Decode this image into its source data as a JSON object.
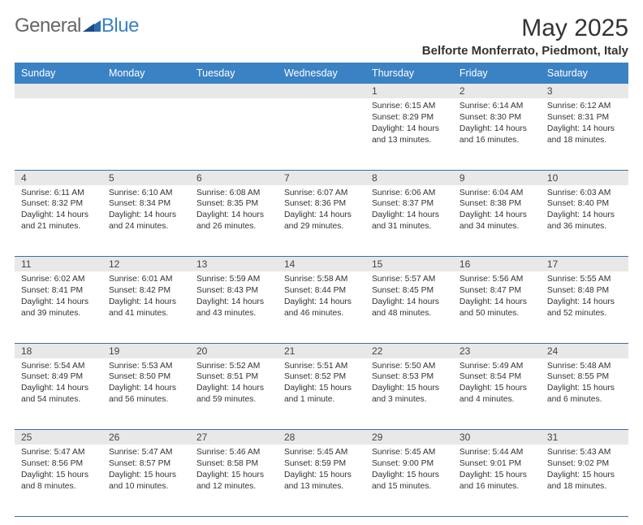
{
  "brand": {
    "part1": "General",
    "part2": "Blue"
  },
  "title": "May 2025",
  "location": "Belforte Monferrato, Piedmont, Italy",
  "colors": {
    "header_bg": "#3b82c4",
    "header_text": "#ffffff",
    "daynum_bg": "#e8e8e8",
    "cell_border": "#3b6fa3",
    "page_bg": "#ffffff",
    "text": "#333333",
    "logo_gray": "#666666",
    "logo_blue": "#3b82c4"
  },
  "typography": {
    "month_title_size": 30,
    "location_size": 15,
    "dayhead_size": 12.5,
    "cell_size": 10.3,
    "daynum_size": 12
  },
  "day_names": [
    "Sunday",
    "Monday",
    "Tuesday",
    "Wednesday",
    "Thursday",
    "Friday",
    "Saturday"
  ],
  "weeks": [
    [
      null,
      null,
      null,
      null,
      {
        "n": "1",
        "sr": "6:15 AM",
        "ss": "8:29 PM",
        "dl": "14 hours and 13 minutes."
      },
      {
        "n": "2",
        "sr": "6:14 AM",
        "ss": "8:30 PM",
        "dl": "14 hours and 16 minutes."
      },
      {
        "n": "3",
        "sr": "6:12 AM",
        "ss": "8:31 PM",
        "dl": "14 hours and 18 minutes."
      }
    ],
    [
      {
        "n": "4",
        "sr": "6:11 AM",
        "ss": "8:32 PM",
        "dl": "14 hours and 21 minutes."
      },
      {
        "n": "5",
        "sr": "6:10 AM",
        "ss": "8:34 PM",
        "dl": "14 hours and 24 minutes."
      },
      {
        "n": "6",
        "sr": "6:08 AM",
        "ss": "8:35 PM",
        "dl": "14 hours and 26 minutes."
      },
      {
        "n": "7",
        "sr": "6:07 AM",
        "ss": "8:36 PM",
        "dl": "14 hours and 29 minutes."
      },
      {
        "n": "8",
        "sr": "6:06 AM",
        "ss": "8:37 PM",
        "dl": "14 hours and 31 minutes."
      },
      {
        "n": "9",
        "sr": "6:04 AM",
        "ss": "8:38 PM",
        "dl": "14 hours and 34 minutes."
      },
      {
        "n": "10",
        "sr": "6:03 AM",
        "ss": "8:40 PM",
        "dl": "14 hours and 36 minutes."
      }
    ],
    [
      {
        "n": "11",
        "sr": "6:02 AM",
        "ss": "8:41 PM",
        "dl": "14 hours and 39 minutes."
      },
      {
        "n": "12",
        "sr": "6:01 AM",
        "ss": "8:42 PM",
        "dl": "14 hours and 41 minutes."
      },
      {
        "n": "13",
        "sr": "5:59 AM",
        "ss": "8:43 PM",
        "dl": "14 hours and 43 minutes."
      },
      {
        "n": "14",
        "sr": "5:58 AM",
        "ss": "8:44 PM",
        "dl": "14 hours and 46 minutes."
      },
      {
        "n": "15",
        "sr": "5:57 AM",
        "ss": "8:45 PM",
        "dl": "14 hours and 48 minutes."
      },
      {
        "n": "16",
        "sr": "5:56 AM",
        "ss": "8:47 PM",
        "dl": "14 hours and 50 minutes."
      },
      {
        "n": "17",
        "sr": "5:55 AM",
        "ss": "8:48 PM",
        "dl": "14 hours and 52 minutes."
      }
    ],
    [
      {
        "n": "18",
        "sr": "5:54 AM",
        "ss": "8:49 PM",
        "dl": "14 hours and 54 minutes."
      },
      {
        "n": "19",
        "sr": "5:53 AM",
        "ss": "8:50 PM",
        "dl": "14 hours and 56 minutes."
      },
      {
        "n": "20",
        "sr": "5:52 AM",
        "ss": "8:51 PM",
        "dl": "14 hours and 59 minutes."
      },
      {
        "n": "21",
        "sr": "5:51 AM",
        "ss": "8:52 PM",
        "dl": "15 hours and 1 minute."
      },
      {
        "n": "22",
        "sr": "5:50 AM",
        "ss": "8:53 PM",
        "dl": "15 hours and 3 minutes."
      },
      {
        "n": "23",
        "sr": "5:49 AM",
        "ss": "8:54 PM",
        "dl": "15 hours and 4 minutes."
      },
      {
        "n": "24",
        "sr": "5:48 AM",
        "ss": "8:55 PM",
        "dl": "15 hours and 6 minutes."
      }
    ],
    [
      {
        "n": "25",
        "sr": "5:47 AM",
        "ss": "8:56 PM",
        "dl": "15 hours and 8 minutes."
      },
      {
        "n": "26",
        "sr": "5:47 AM",
        "ss": "8:57 PM",
        "dl": "15 hours and 10 minutes."
      },
      {
        "n": "27",
        "sr": "5:46 AM",
        "ss": "8:58 PM",
        "dl": "15 hours and 12 minutes."
      },
      {
        "n": "28",
        "sr": "5:45 AM",
        "ss": "8:59 PM",
        "dl": "15 hours and 13 minutes."
      },
      {
        "n": "29",
        "sr": "5:45 AM",
        "ss": "9:00 PM",
        "dl": "15 hours and 15 minutes."
      },
      {
        "n": "30",
        "sr": "5:44 AM",
        "ss": "9:01 PM",
        "dl": "15 hours and 16 minutes."
      },
      {
        "n": "31",
        "sr": "5:43 AM",
        "ss": "9:02 PM",
        "dl": "15 hours and 18 minutes."
      }
    ]
  ],
  "labels": {
    "sunrise": "Sunrise:",
    "sunset": "Sunset:",
    "daylight": "Daylight:"
  }
}
